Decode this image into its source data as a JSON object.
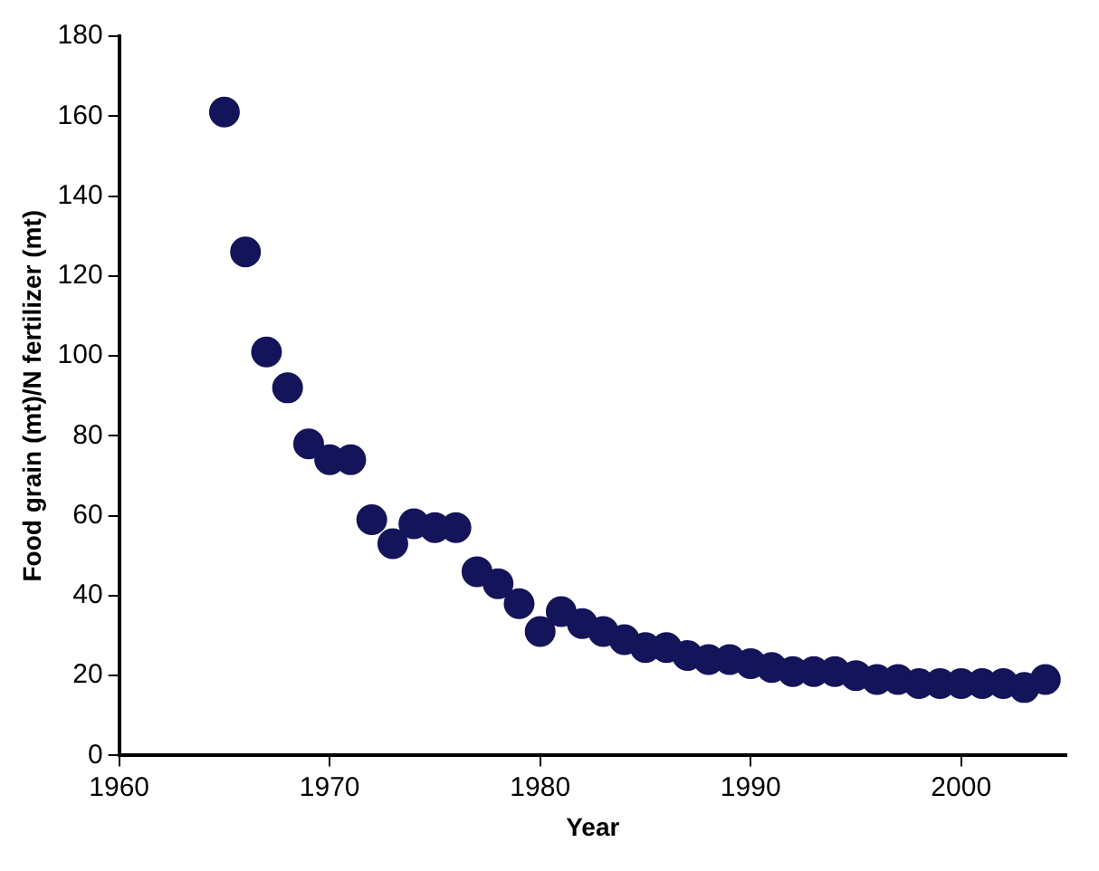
{
  "chart_data": {
    "type": "scatter",
    "xlabel": "Year",
    "ylabel": "Food grain (mt)/N fertilizer (mt)",
    "x": [
      1965,
      1966,
      1967,
      1968,
      1969,
      1970,
      1971,
      1972,
      1973,
      1974,
      1975,
      1976,
      1977,
      1978,
      1979,
      1980,
      1981,
      1982,
      1983,
      1984,
      1985,
      1986,
      1987,
      1988,
      1989,
      1990,
      1991,
      1992,
      1993,
      1994,
      1995,
      1996,
      1997,
      1998,
      1999,
      2000,
      2001,
      2002,
      2003,
      2004
    ],
    "series": [
      {
        "color": "#14145a",
        "values": [
          161,
          126,
          101,
          92,
          78,
          74,
          74,
          59,
          53,
          58,
          57,
          57,
          46,
          43,
          38,
          31,
          36,
          33,
          31,
          29,
          27,
          27,
          25,
          24,
          24,
          23,
          22,
          21,
          21,
          21,
          20,
          19,
          19,
          18,
          18,
          18,
          18,
          18,
          17,
          19
        ]
      }
    ],
    "xlim": [
      1960,
      2005
    ],
    "xticks": [
      1960,
      1970,
      1980,
      1990,
      2000
    ],
    "ylim": [
      0,
      180
    ],
    "yticks": [
      0,
      20,
      40,
      60,
      80,
      100,
      120,
      140,
      160,
      180
    ],
    "grid": false,
    "legend": false,
    "marker": "circle"
  }
}
